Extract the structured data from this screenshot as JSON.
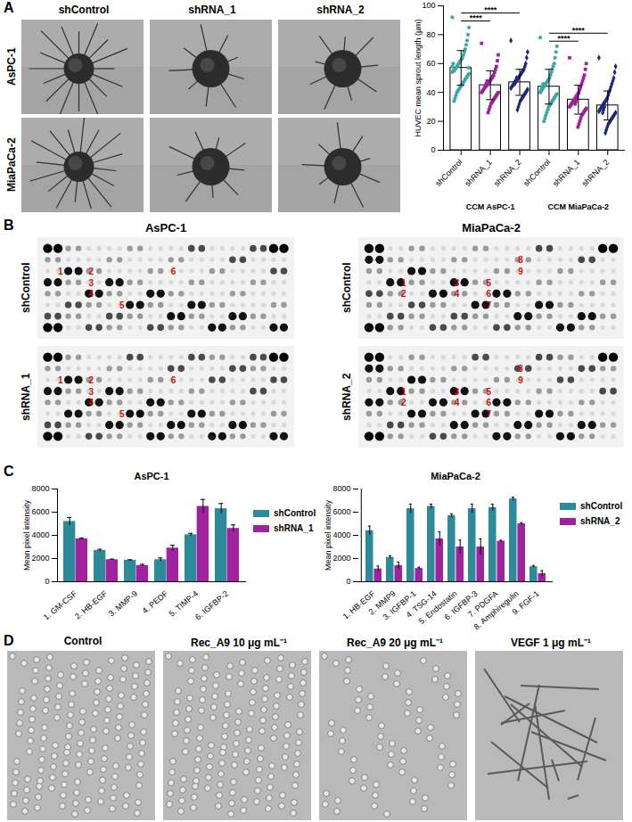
{
  "panel_labels": [
    "A",
    "B",
    "C",
    "D"
  ],
  "panel_a_images": {
    "columns": [
      "shControl",
      "shRNA_1",
      "shRNA_2"
    ],
    "rows": [
      "AsPC-1",
      "MiaPaCa-2"
    ]
  },
  "panel_b_arrays": [
    {
      "title": "AsPC-1",
      "rows": [
        {
          "label": "shControl",
          "marked_spots": [
            "1",
            "2",
            "3",
            "4",
            "5",
            "6"
          ]
        },
        {
          "label": "shRNA_1",
          "marked_spots": [
            "1",
            "2",
            "3",
            "4",
            "5",
            "6"
          ]
        }
      ]
    },
    {
      "title": "MiaPaCa-2",
      "rows": [
        {
          "label": "shControl",
          "marked_spots": [
            "1",
            "2",
            "3",
            "4",
            "5",
            "6",
            "7",
            "8",
            "9"
          ]
        },
        {
          "label": "shRNA_2",
          "marked_spots": [
            "1",
            "2",
            "3",
            "4",
            "5",
            "6",
            "7",
            "8",
            "9"
          ]
        }
      ]
    }
  ],
  "panel_d_images": {
    "columns": [
      "Control",
      "Rec_A9 10 μg mL⁻¹",
      "Rec_A9 20 μg mL⁻¹",
      "VEGF 1 μg mL⁻¹"
    ]
  },
  "chart_data": [
    {
      "type": "bar",
      "y_label": "HUVEC mean sprout length (µm)",
      "categories": [
        "shControl",
        "shRNA_1",
        "shRNA_2",
        "shControl",
        "shRNA_1",
        "shRNA_2"
      ],
      "groups": [
        "CCM AsPC-1",
        "CCM MiaPaCa-2"
      ],
      "values": [
        57,
        45,
        47,
        44,
        35,
        31
      ],
      "errors": [
        12,
        10,
        9,
        12,
        10,
        10
      ],
      "colors": [
        "#3aa8a8",
        "#9c1f9c",
        "#1f2a7a",
        "#3aa8a8",
        "#9c1f9c",
        "#1f2a7a"
      ],
      "points": [
        {
          "marker": "circle",
          "values": [
            92,
            85,
            80,
            76,
            73,
            70,
            68,
            66,
            64,
            63,
            62,
            61,
            60,
            59,
            58,
            57,
            56,
            55,
            55,
            54,
            53,
            52,
            51,
            50,
            49,
            48,
            47,
            46,
            45,
            44,
            43,
            42,
            41,
            40,
            38,
            36,
            34,
            60,
            58,
            57
          ]
        },
        {
          "marker": "square",
          "values": [
            74,
            66,
            62,
            58,
            56,
            54,
            52,
            51,
            50,
            49,
            48,
            47,
            46,
            45,
            45,
            44,
            43,
            42,
            41,
            40,
            40,
            39,
            38,
            37,
            36,
            35,
            34,
            33,
            32,
            30,
            28,
            26,
            48,
            46,
            44
          ]
        },
        {
          "marker": "diamond",
          "values": [
            76,
            68,
            64,
            60,
            58,
            56,
            55,
            54,
            53,
            52,
            51,
            50,
            49,
            48,
            47,
            47,
            46,
            45,
            44,
            43,
            42,
            41,
            40,
            39,
            38,
            37,
            36,
            35,
            34,
            32,
            30,
            28,
            50,
            48,
            46
          ]
        },
        {
          "marker": "circle",
          "values": [
            78,
            72,
            68,
            64,
            60,
            58,
            56,
            54,
            52,
            50,
            49,
            48,
            47,
            46,
            45,
            44,
            43,
            42,
            41,
            40,
            39,
            38,
            37,
            36,
            35,
            34,
            33,
            32,
            31,
            30,
            28,
            26,
            24,
            22,
            20,
            46,
            44,
            42
          ]
        },
        {
          "marker": "square",
          "values": [
            64,
            60,
            56,
            52,
            50,
            48,
            46,
            44,
            42,
            40,
            39,
            38,
            37,
            36,
            35,
            34,
            33,
            32,
            31,
            30,
            29,
            28,
            27,
            26,
            25,
            24,
            22,
            20,
            18,
            16,
            36,
            34,
            32
          ]
        },
        {
          "marker": "diamond",
          "values": [
            64,
            58,
            54,
            50,
            48,
            46,
            44,
            42,
            40,
            38,
            36,
            35,
            34,
            33,
            32,
            31,
            30,
            29,
            28,
            27,
            26,
            25,
            24,
            23,
            22,
            21,
            20,
            19,
            18,
            16,
            14,
            12,
            30,
            28,
            26
          ]
        }
      ],
      "significance": [
        {
          "from": 0,
          "to": 1,
          "label": "****"
        },
        {
          "from": 0,
          "to": 2,
          "label": "****"
        },
        {
          "from": 3,
          "to": 4,
          "label": "****"
        },
        {
          "from": 3,
          "to": 5,
          "label": "****"
        }
      ],
      "ylim": [
        0,
        100
      ],
      "yticks": [
        0,
        20,
        40,
        60,
        80,
        100
      ]
    },
    {
      "type": "bar",
      "title": "AsPC-1",
      "y_label": "Mean pixel intensity",
      "categories": [
        "1. GM-CSF",
        "2. HB-EGF",
        "3. MMP-9",
        "4. PEDF",
        "5. TIMP-4",
        "6. IGFBP-2"
      ],
      "series": [
        {
          "name": "shControl",
          "color": "#2b8b9b",
          "values": [
            5200,
            2700,
            1850,
            1900,
            4050,
            6300
          ],
          "errors": [
            350,
            100,
            50,
            150,
            120,
            450
          ]
        },
        {
          "name": "shRNA_1",
          "color": "#a0229f",
          "values": [
            3700,
            1900,
            1400,
            2900,
            6500,
            4600
          ],
          "errors": [
            80,
            50,
            100,
            250,
            600,
            300
          ]
        }
      ],
      "ylim": [
        0,
        8000
      ],
      "yticks": [
        0,
        2000,
        4000,
        6000,
        8000
      ],
      "legend": "right"
    },
    {
      "type": "bar",
      "title": "MiaPaCa-2",
      "y_label": "Mean pixel intensity",
      "categories": [
        "1. HB-EGF",
        "2. MMP9",
        "3. IGFBP-1",
        "4. TSG-14",
        "5. Endostatin",
        "6. IGFBP-3",
        "7. PDGFA",
        "8. Amphiregulin",
        "9. FGF-1"
      ],
      "series": [
        {
          "name": "shControl",
          "color": "#2b8b9b",
          "values": [
            4400,
            2100,
            6300,
            6500,
            5700,
            6300,
            6400,
            7150,
            1300
          ],
          "errors": [
            400,
            150,
            400,
            200,
            150,
            400,
            300,
            150,
            100
          ]
        },
        {
          "name": "shRNA_2",
          "color": "#a0229f",
          "values": [
            1100,
            1400,
            1150,
            3700,
            3000,
            3000,
            3500,
            5000,
            700
          ],
          "errors": [
            250,
            300,
            100,
            600,
            600,
            700,
            80,
            100,
            250
          ]
        }
      ],
      "ylim": [
        0,
        8000
      ],
      "yticks": [
        0,
        2000,
        4000,
        6000,
        8000
      ],
      "legend": "right"
    }
  ]
}
